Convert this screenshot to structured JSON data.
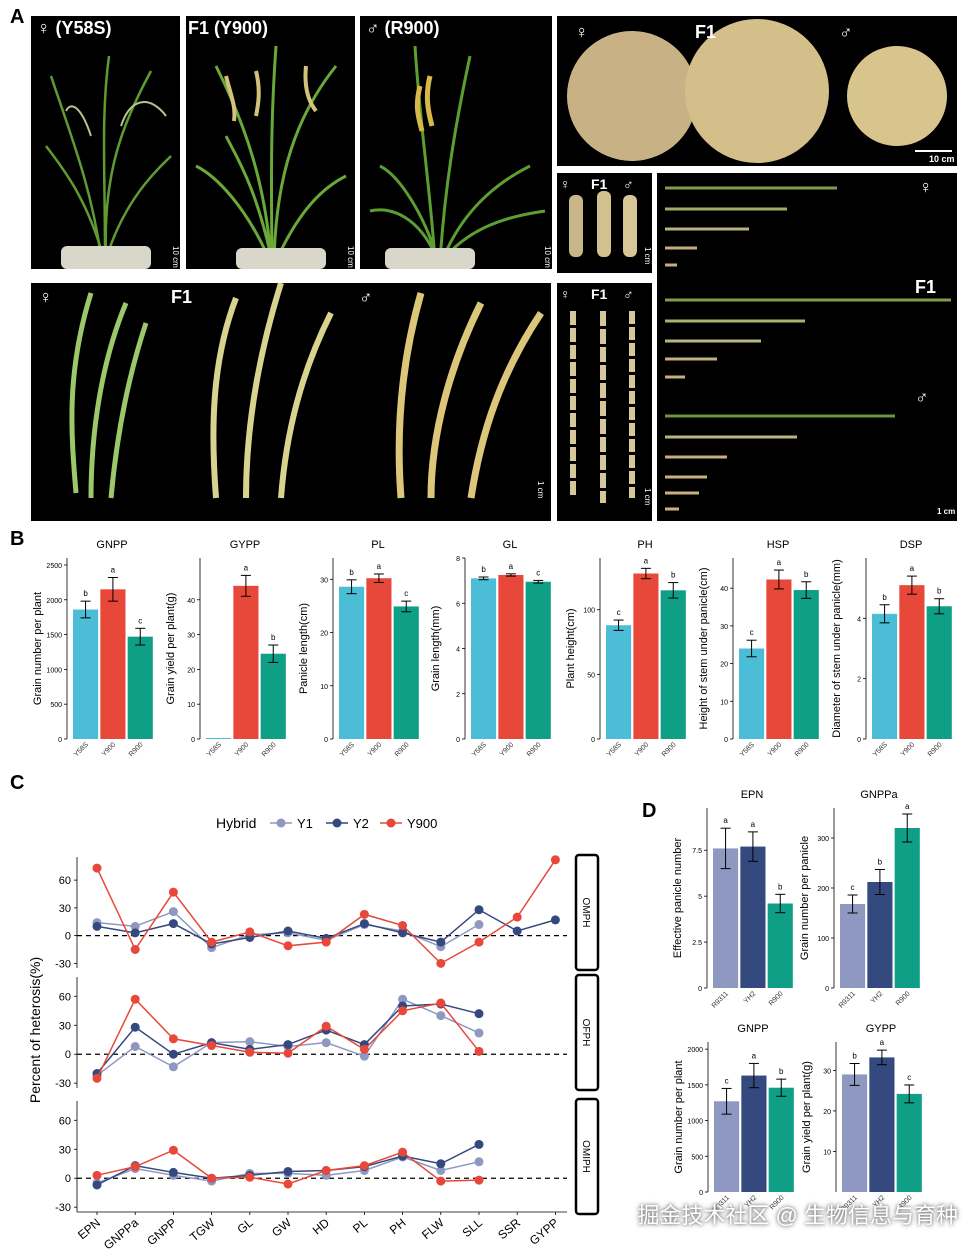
{
  "panels": {
    "A": "A",
    "B": "B",
    "C": "C",
    "D": "D"
  },
  "panel_a": {
    "plant_labels": [
      "♀ (Y58S)",
      "F1 (Y900)",
      "♂ (R900)"
    ],
    "grain_labels": [
      "♀",
      "F1",
      "♂"
    ],
    "small_labels": [
      "♀",
      "F1",
      "♂"
    ],
    "panicle_labels": [
      "♀",
      "F1",
      "♂"
    ],
    "seed_labels": [
      "♀",
      "F1",
      "♂"
    ],
    "stem_labels": [
      "♀",
      "F1",
      "♂"
    ],
    "scale_10cm": "10 cm",
    "scale_1cm": "1 cm"
  },
  "colors": {
    "y58s": "#4bbdd6",
    "y900": "#e8483a",
    "r900": "#0f9e86",
    "y1": "#8e98c0",
    "y2": "#34497e",
    "r9311": "#8e98c0",
    "yh2": "#34497e"
  },
  "chart_data": [
    {
      "id": "B-GNPP",
      "type": "bar",
      "title": "GNPP",
      "ylabel": "Grain number per plant",
      "categories": [
        "Y58S",
        "Y900",
        "R900"
      ],
      "values": [
        1860,
        2150,
        1470
      ],
      "errors": [
        120,
        170,
        120
      ],
      "letters": [
        "b",
        "a",
        "c"
      ],
      "ylim": [
        0,
        2600
      ],
      "ticks": [
        0,
        500,
        1000,
        1500,
        2000,
        2500
      ]
    },
    {
      "id": "B-GYPP",
      "type": "bar",
      "title": "GYPP",
      "ylabel": "Grain yield per plant(g)",
      "categories": [
        "Y58S",
        "Y900",
        "R900"
      ],
      "values": [
        0.3,
        44,
        24.5
      ],
      "errors": [
        0,
        3,
        2.5
      ],
      "letters": [
        "",
        "a",
        "b"
      ],
      "ylim": [
        0,
        52
      ],
      "ticks": [
        0,
        10,
        20,
        30,
        40
      ]
    },
    {
      "id": "B-PL",
      "type": "bar",
      "title": "PL",
      "ylabel": "Panicle length(cm)",
      "categories": [
        "Y58S",
        "Y900",
        "R900"
      ],
      "values": [
        28.6,
        30.2,
        24.9
      ],
      "errors": [
        1.3,
        0.8,
        1.0
      ],
      "letters": [
        "b",
        "a",
        "c"
      ],
      "ylim": [
        0,
        34
      ],
      "ticks": [
        0,
        10,
        20,
        30
      ]
    },
    {
      "id": "B-GL",
      "type": "bar",
      "title": "GL",
      "ylabel": "Grain length(mm)",
      "categories": [
        "Y58S",
        "Y900",
        "R900"
      ],
      "values": [
        7.1,
        7.25,
        6.95
      ],
      "errors": [
        0.06,
        0.05,
        0.06
      ],
      "letters": [
        "b",
        "a",
        "c"
      ],
      "ylim": [
        0,
        8
      ],
      "ticks": [
        0,
        2,
        4,
        6,
        8
      ]
    },
    {
      "id": "B-PH",
      "type": "bar",
      "title": "PH",
      "ylabel": "Plant height(cm)",
      "categories": [
        "Y58S",
        "Y900",
        "R900"
      ],
      "values": [
        88,
        128,
        115
      ],
      "errors": [
        4,
        4,
        6
      ],
      "letters": [
        "c",
        "a",
        "b"
      ],
      "ylim": [
        0,
        140
      ],
      "ticks": [
        0,
        50,
        100
      ]
    },
    {
      "id": "B-HSP",
      "type": "bar",
      "title": "HSP",
      "ylabel": "Height of stem under panicle(cm)",
      "categories": [
        "Y58S",
        "Y900",
        "R900"
      ],
      "values": [
        24,
        42.3,
        39.5
      ],
      "errors": [
        2.2,
        2.5,
        2.2
      ],
      "letters": [
        "c",
        "a",
        "b"
      ],
      "ylim": [
        0,
        48
      ],
      "ticks": [
        0,
        10,
        20,
        30,
        40
      ]
    },
    {
      "id": "B-DSP",
      "type": "bar",
      "title": "DSP",
      "ylabel": "Diameter of stem under panicle(mm)",
      "categories": [
        "Y58S",
        "Y900",
        "R900"
      ],
      "values": [
        4.15,
        5.1,
        4.4
      ],
      "errors": [
        0.3,
        0.3,
        0.25
      ],
      "letters": [
        "b",
        "a",
        "b"
      ],
      "ylim": [
        0,
        6
      ],
      "ticks": [
        0,
        2,
        4
      ]
    },
    {
      "id": "C",
      "type": "line",
      "legend_title": "Hybrid",
      "ylabel": "Percent of heterosis(%)",
      "categories": [
        "EPN",
        "GNPPa",
        "GNPP",
        "TGW",
        "GL",
        "GW",
        "HD",
        "PL",
        "PH",
        "FLW",
        "SLL",
        "SSR",
        "GYPP"
      ],
      "facets": [
        {
          "name": "OMPH",
          "ylim": [
            -35,
            85
          ],
          "ticks": [
            -30,
            0,
            30,
            60
          ],
          "series": [
            {
              "name": "Y1",
              "values": [
                14,
                10,
                26,
                -13,
                1,
                3,
                -5,
                12,
                5,
                -12,
                12,
                null,
                null
              ]
            },
            {
              "name": "Y2",
              "values": [
                10,
                3,
                13,
                -9,
                -2,
                5,
                -3,
                13,
                3,
                -7,
                28,
                5,
                17
              ]
            },
            {
              "name": "Y900",
              "values": [
                73,
                -15,
                47,
                -7,
                4,
                -11,
                -7,
                23,
                11,
                -30,
                -7,
                20,
                82
              ]
            }
          ]
        },
        {
          "name": "OFPH",
          "ylim": [
            -35,
            80
          ],
          "ticks": [
            -30,
            0,
            30,
            60
          ],
          "series": [
            {
              "name": "Y1",
              "values": [
                -22,
                8,
                -13,
                12,
                13,
                8,
                12,
                -2,
                57,
                40,
                22,
                null,
                null
              ]
            },
            {
              "name": "Y2",
              "values": [
                -20,
                28,
                0,
                12,
                5,
                10,
                25,
                10,
                50,
                52,
                42,
                null,
                null
              ]
            },
            {
              "name": "Y900",
              "values": [
                -25,
                57,
                16,
                9,
                2,
                1,
                29,
                5,
                45,
                53,
                3,
                null,
                null
              ]
            }
          ]
        },
        {
          "name": "OMIPH",
          "ylim": [
            -35,
            80
          ],
          "ticks": [
            -30,
            0,
            30,
            60
          ],
          "series": [
            {
              "name": "Y1",
              "values": [
                -5,
                10,
                3,
                -3,
                5,
                5,
                3,
                8,
                22,
                8,
                17,
                null,
                null
              ]
            },
            {
              "name": "Y2",
              "values": [
                -7,
                13,
                6,
                0,
                3,
                7,
                8,
                12,
                23,
                15,
                35,
                null,
                null
              ]
            },
            {
              "name": "Y900",
              "values": [
                3,
                12,
                29,
                0,
                1,
                -6,
                8,
                13,
                27,
                -3,
                -2,
                null,
                null
              ]
            }
          ]
        }
      ]
    },
    {
      "id": "D-EPN",
      "type": "bar",
      "title": "EPN",
      "ylabel": "Effective panicle number",
      "categories": [
        "R9311",
        "YH2",
        "R900"
      ],
      "values": [
        7.6,
        7.7,
        4.6
      ],
      "errors": [
        1.1,
        0.8,
        0.5
      ],
      "letters": [
        "a",
        "a",
        "b"
      ],
      "ylim": [
        0,
        9.8
      ],
      "ticks": [
        0.0,
        2.5,
        5.0,
        7.5
      ]
    },
    {
      "id": "D-GNPPa",
      "type": "bar",
      "title": "GNPPa",
      "ylabel": "Grain number per panicle",
      "categories": [
        "R9311",
        "YH2",
        "R900"
      ],
      "values": [
        168,
        212,
        320
      ],
      "errors": [
        18,
        25,
        28
      ],
      "letters": [
        "c",
        "b",
        "a"
      ],
      "ylim": [
        0,
        360
      ],
      "ticks": [
        0,
        100,
        200,
        300
      ]
    },
    {
      "id": "D-GNPP",
      "type": "bar",
      "title": "GNPP",
      "ylabel": "Grain number per plant",
      "categories": [
        "R9311",
        "YH2",
        "R900"
      ],
      "values": [
        1270,
        1630,
        1460
      ],
      "errors": [
        180,
        170,
        120
      ],
      "letters": [
        "c",
        "a",
        "b"
      ],
      "ylim": [
        0,
        2100
      ],
      "ticks": [
        0,
        500,
        1000,
        1500,
        2000
      ]
    },
    {
      "id": "D-GYPP",
      "type": "bar",
      "title": "GYPP",
      "ylabel": "Grain yield per plant(g)",
      "categories": [
        "R9311",
        "YH2",
        "R900"
      ],
      "values": [
        29,
        33.2,
        24.2
      ],
      "errors": [
        2.7,
        1.8,
        2.2
      ],
      "letters": [
        "b",
        "a",
        "c"
      ],
      "ylim": [
        0,
        37
      ],
      "ticks": [
        10,
        20,
        30
      ]
    }
  ],
  "watermark": "掘金技术社区 @ 生物信息与育种"
}
